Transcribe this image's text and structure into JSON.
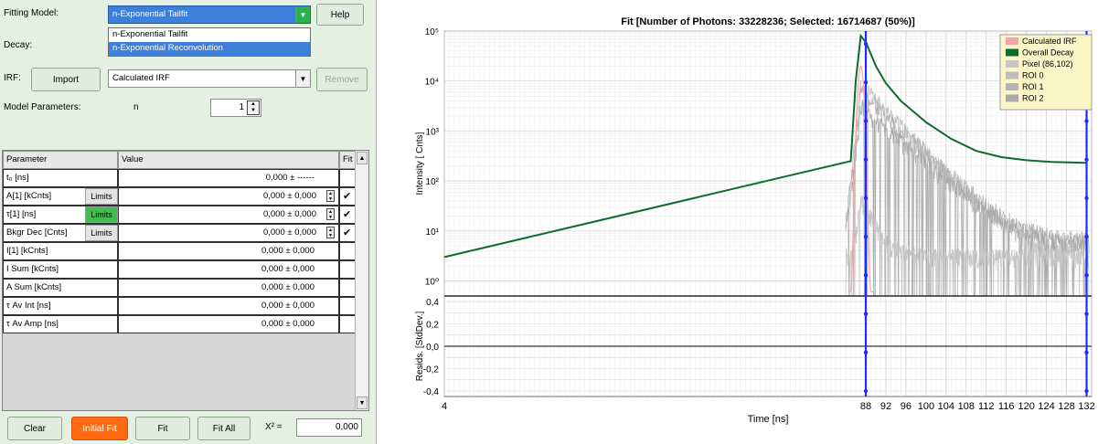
{
  "left_panel": {
    "fitting_model": {
      "label": "Fitting Model:",
      "value": "n-Exponential Tailfit",
      "options": [
        "n-Exponential Tailfit",
        "n-Exponential Reconvolution"
      ],
      "highlighted_option": "n-Exponential Reconvolution"
    },
    "help_button": "Help",
    "decay_label": "Decay:",
    "irf": {
      "label": "IRF:",
      "import_button": "Import",
      "value": "Calculated IRF",
      "remove_button": "Remove"
    },
    "model_parameters": {
      "label": "Model Parameters:",
      "param_name": "n",
      "value": "1"
    },
    "table": {
      "headers": [
        "Parameter",
        "Value",
        "Fit"
      ],
      "rows": [
        {
          "param": "t₀ [ns]",
          "value": "0,000 ± ------",
          "limits": "",
          "limits_green": false,
          "spinner": false,
          "fit_checked": false
        },
        {
          "param": "A[1] [kCnts]",
          "value": "0,000 ± 0,000",
          "limits": "Limits",
          "limits_green": false,
          "spinner": true,
          "fit_checked": true
        },
        {
          "param": "τ[1] [ns]",
          "value": "0,000 ± 0,000",
          "limits": "Limits",
          "limits_green": true,
          "spinner": true,
          "fit_checked": true
        },
        {
          "param": "Bkgr Dec [Cnts]",
          "value": "0,000 ± 0,000",
          "limits": "Limits",
          "limits_green": false,
          "spinner": true,
          "fit_checked": true
        },
        {
          "param": "I[1] [kCnts]",
          "value": "0,000 ± 0,000",
          "limits": "",
          "limits_green": false,
          "spinner": false,
          "fit_checked": false
        },
        {
          "param": "I Sum [kCnts]",
          "value": "0,000 ± 0,000",
          "limits": "",
          "limits_green": false,
          "spinner": false,
          "fit_checked": false
        },
        {
          "param": "A Sum [kCnts]",
          "value": "0,000 ± 0,000",
          "limits": "",
          "limits_green": false,
          "spinner": false,
          "fit_checked": false
        },
        {
          "param": "τ Av Int [ns]",
          "value": "0,000 ± 0,000",
          "limits": "",
          "limits_green": false,
          "spinner": false,
          "fit_checked": false
        },
        {
          "param": "τ Av Amp [ns]",
          "value": "0,000 ± 0,000",
          "limits": "",
          "limits_green": false,
          "spinner": false,
          "fit_checked": false
        }
      ]
    },
    "bottom": {
      "clear": "Clear",
      "initial_fit": "Initial Fit",
      "fit": "Fit",
      "fit_all": "Fit All",
      "chi_label": "Χ² =",
      "chi_value": "0,000"
    }
  },
  "chart_data": [
    {
      "type": "line",
      "title": "Fit [Number of Photons: 33228236; Selected: 16714687 (50%)]",
      "xlabel": "Time [ns]",
      "ylabel": "Intensity [ Cnts]",
      "yscale": "log",
      "xlim": [
        4,
        133
      ],
      "ylim": [
        0.5,
        100000
      ],
      "x_ticks": [
        4,
        88,
        92,
        96,
        100,
        104,
        108,
        112,
        116,
        120,
        124,
        128,
        132
      ],
      "y_ticks": [
        "10⁰",
        "10¹",
        "10²",
        "10³",
        "10⁴",
        "10⁵"
      ],
      "grid": true,
      "legend_position": "top-right",
      "vertical_markers_x": [
        88,
        132
      ],
      "series": [
        {
          "name": "Calculated IRF",
          "color": "#f4a6a6"
        },
        {
          "name": "Overall Decay",
          "color": "#0f6b2c",
          "x": [
            4,
            85,
            86,
            87,
            88,
            90,
            92,
            95,
            100,
            105,
            110,
            115,
            120,
            125,
            132
          ],
          "y": [
            3,
            250,
            10000,
            80000,
            60000,
            20000,
            9000,
            4000,
            1500,
            700,
            400,
            300,
            260,
            240,
            230
          ]
        },
        {
          "name": "Pixel (86,102)",
          "color": "#c6c6c6"
        },
        {
          "name": "ROI 0",
          "color": "#bdbdbd"
        },
        {
          "name": "ROI 1",
          "color": "#b4b4b4"
        },
        {
          "name": "ROI 2",
          "color": "#aaaaaa"
        }
      ]
    },
    {
      "type": "line",
      "xlabel": "Time [ns]",
      "ylabel": "Resids. [StdDev.]",
      "xlim": [
        4,
        133
      ],
      "ylim": [
        -0.45,
        0.45
      ],
      "y_ticks": [
        "0,4",
        "0,2",
        "0,0",
        "-0,2",
        "-0,4"
      ],
      "grid": true
    }
  ]
}
